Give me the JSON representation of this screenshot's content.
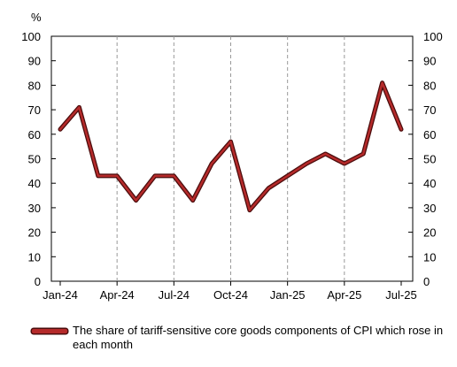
{
  "chart_data": {
    "type": "line",
    "y_unit_label": "%",
    "ylim": [
      0,
      100
    ],
    "yticks": [
      "0",
      "10",
      "20",
      "30",
      "40",
      "50",
      "60",
      "70",
      "80",
      "90",
      "100"
    ],
    "x_tick_labels": [
      "Jan-24",
      "Apr-24",
      "Jul-24",
      "Oct-24",
      "Jan-25",
      "Apr-25",
      "Jul-25"
    ],
    "x": [
      "Jan-24",
      "Feb-24",
      "Mar-24",
      "Apr-24",
      "May-24",
      "Jun-24",
      "Jul-24",
      "Aug-24",
      "Sep-24",
      "Oct-24",
      "Nov-24",
      "Dec-24",
      "Jan-25",
      "Feb-25",
      "Mar-25",
      "Apr-25",
      "May-25",
      "Jun-25",
      "Jul-25"
    ],
    "grid": "vertical dashed at quarters",
    "legend_position": "bottom",
    "series": [
      {
        "name": "The share of tariff-sensitive core goods components of CPI which rose in each month",
        "color": "#8b1a1a",
        "values": [
          62,
          71,
          43,
          43,
          33,
          43,
          43,
          33,
          48,
          57,
          29,
          38,
          43,
          48,
          52,
          48,
          52,
          81,
          62
        ]
      }
    ]
  }
}
